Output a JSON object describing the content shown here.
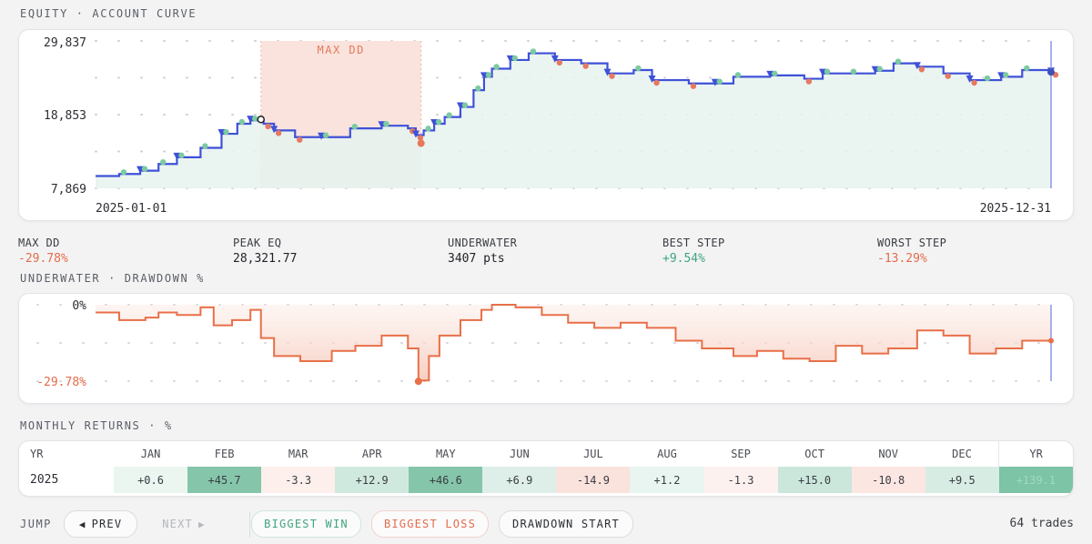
{
  "equity": {
    "section_label": "EQUITY · ACCOUNT CURVE",
    "y_ticks": [
      "29,837",
      "18,853",
      "7,869"
    ],
    "x_start": "2025-01-01",
    "x_end": "2025-12-31",
    "max_dd_label": "MAX DD",
    "colors": {
      "line": "#3f51d8",
      "fill": "#e6f3ee",
      "dd_band": "#f9e3dc",
      "win": "#7ccba0",
      "loss": "#e57a63"
    }
  },
  "stats": {
    "max_dd": {
      "label": "MAX DD",
      "value": "-29.78%"
    },
    "peak_eq": {
      "label": "PEAK EQ",
      "value": "28,321.77"
    },
    "underwater": {
      "label": "UNDERWATER",
      "value": "3407 pts"
    },
    "best_step": {
      "label": "BEST STEP",
      "value": "+9.54%"
    },
    "worst_step": {
      "label": "WORST STEP",
      "value": "-13.29%"
    }
  },
  "drawdown": {
    "section_label": "UNDERWATER · DRAWDOWN %",
    "y_top": "0%",
    "y_bottom": "-29.78%",
    "color": "#e86f48"
  },
  "monthly": {
    "section_label": "MONTHLY RETURNS · %",
    "headers": [
      "YR",
      "JAN",
      "FEB",
      "MAR",
      "APR",
      "MAY",
      "JUN",
      "JUL",
      "AUG",
      "SEP",
      "OCT",
      "NOV",
      "DEC",
      "YR"
    ],
    "row": {
      "year": "2025",
      "values": [
        "+0.6",
        "+45.7",
        "-3.3",
        "+12.9",
        "+46.6",
        "+6.9",
        "-14.9",
        "+1.2",
        "-1.3",
        "+15.0",
        "-10.8",
        "+9.5"
      ],
      "total": "+139.1"
    }
  },
  "nav": {
    "jump_label": "JUMP",
    "prev_label": "PREV",
    "next_label": "NEXT",
    "biggest_win": "BIGGEST WIN",
    "biggest_loss": "BIGGEST LOSS",
    "drawdown_start": "DRAWDOWN START",
    "trade_count": "64 trades"
  },
  "chart_data": [
    {
      "type": "line",
      "title": "EQUITY · ACCOUNT CURVE",
      "x_range": [
        "2025-01-01",
        "2025-12-31"
      ],
      "ylim": [
        7869,
        29837
      ],
      "y_ticks": [
        29837,
        18853,
        7869
      ],
      "x": [
        "2025-01-01",
        "2025-01-10",
        "2025-01-18",
        "2025-01-25",
        "2025-02-01",
        "2025-02-10",
        "2025-02-18",
        "2025-02-24",
        "2025-03-01",
        "2025-03-06",
        "2025-03-10",
        "2025-03-18",
        "2025-03-28",
        "2025-04-08",
        "2025-04-20",
        "2025-04-30",
        "2025-05-03",
        "2025-05-06",
        "2025-05-10",
        "2025-05-14",
        "2025-05-20",
        "2025-05-25",
        "2025-05-29",
        "2025-06-01",
        "2025-06-08",
        "2025-06-15",
        "2025-06-25",
        "2025-07-05",
        "2025-07-15",
        "2025-07-25",
        "2025-08-01",
        "2025-08-15",
        "2025-08-25",
        "2025-09-01",
        "2025-09-15",
        "2025-09-28",
        "2025-10-05",
        "2025-10-15",
        "2025-10-25",
        "2025-11-01",
        "2025-11-10",
        "2025-11-20",
        "2025-11-30",
        "2025-12-05",
        "2025-12-12",
        "2025-12-20",
        "2025-12-31"
      ],
      "y": [
        9700,
        10000,
        10500,
        11500,
        12500,
        13900,
        16000,
        17500,
        18000,
        17500,
        16500,
        15500,
        15500,
        16800,
        17200,
        16800,
        15800,
        16500,
        17500,
        18500,
        20000,
        22500,
        24500,
        25700,
        27000,
        28000,
        27000,
        26500,
        25000,
        25500,
        24000,
        23500,
        23500,
        24500,
        24700,
        24200,
        25000,
        25000,
        25400,
        26500,
        26000,
        25000,
        24000,
        24000,
        24500,
        25500,
        25200
      ],
      "max_dd_window": [
        "2025-03-05",
        "2025-05-05"
      ],
      "series": [
        {
          "name": ""
        }
      ]
    },
    {
      "type": "area",
      "title": "UNDERWATER · DRAWDOWN %",
      "x_range": [
        "2025-01-01",
        "2025-12-31"
      ],
      "ylim": [
        -29.78,
        0
      ],
      "x": [
        "2025-01-01",
        "2025-01-10",
        "2025-01-20",
        "2025-01-25",
        "2025-02-01",
        "2025-02-10",
        "2025-02-15",
        "2025-02-22",
        "2025-03-01",
        "2025-03-05",
        "2025-03-10",
        "2025-03-20",
        "2025-04-01",
        "2025-04-10",
        "2025-04-20",
        "2025-04-30",
        "2025-05-04",
        "2025-05-08",
        "2025-05-12",
        "2025-05-20",
        "2025-05-28",
        "2025-06-01",
        "2025-06-10",
        "2025-06-20",
        "2025-06-30",
        "2025-07-10",
        "2025-07-20",
        "2025-07-30",
        "2025-08-10",
        "2025-08-20",
        "2025-09-01",
        "2025-09-10",
        "2025-09-20",
        "2025-09-30",
        "2025-10-10",
        "2025-10-20",
        "2025-10-30",
        "2025-11-10",
        "2025-11-20",
        "2025-11-30",
        "2025-12-10",
        "2025-12-20",
        "2025-12-31"
      ],
      "y": [
        -3,
        -6,
        -5,
        -3,
        -4,
        -1,
        -8,
        -6,
        -2,
        -13,
        -20,
        -22,
        -18,
        -16,
        -12,
        -17,
        -29.5,
        -20,
        -12,
        -6,
        -2,
        0,
        -1,
        -4,
        -7,
        -9,
        -7,
        -9,
        -14,
        -17,
        -20,
        -18,
        -21,
        -22,
        -16,
        -19,
        -17,
        -10,
        -12,
        -19,
        -17,
        -14,
        -14
      ]
    }
  ]
}
